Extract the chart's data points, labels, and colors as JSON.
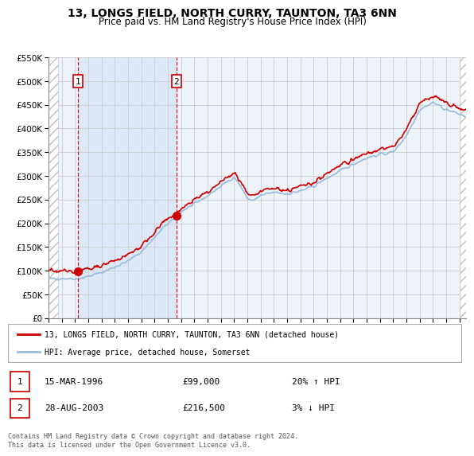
{
  "title": "13, LONGS FIELD, NORTH CURRY, TAUNTON, TA3 6NN",
  "subtitle": "Price paid vs. HM Land Registry's House Price Index (HPI)",
  "sale1_year": 1996.21,
  "sale1_price": 99000,
  "sale2_year": 2003.65,
  "sale2_price": 216500,
  "sale1_date_str": "15-MAR-1996",
  "sale1_price_str": "£99,000",
  "sale1_hpi_str": "20% ↑ HPI",
  "sale2_date_str": "28-AUG-2003",
  "sale2_price_str": "£216,500",
  "sale2_hpi_str": "3% ↓ HPI",
  "xmin": 1994,
  "xmax": 2025.5,
  "ymin": 0,
  "ymax": 550000,
  "yticks": [
    0,
    50000,
    100000,
    150000,
    200000,
    250000,
    300000,
    350000,
    400000,
    450000,
    500000,
    550000
  ],
  "line_property_color": "#cc0000",
  "line_hpi_color": "#99bbdd",
  "highlight_color": "#dce8f5",
  "bg_color": "#eef3f9",
  "grid_color": "#cccccc",
  "hatch_color": "#bbbbbb",
  "legend_line1": "13, LONGS FIELD, NORTH CURRY, TAUNTON, TA3 6NN (detached house)",
  "legend_line2": "HPI: Average price, detached house, Somerset",
  "footer": "Contains HM Land Registry data © Crown copyright and database right 2024.\nThis data is licensed under the Open Government Licence v3.0."
}
